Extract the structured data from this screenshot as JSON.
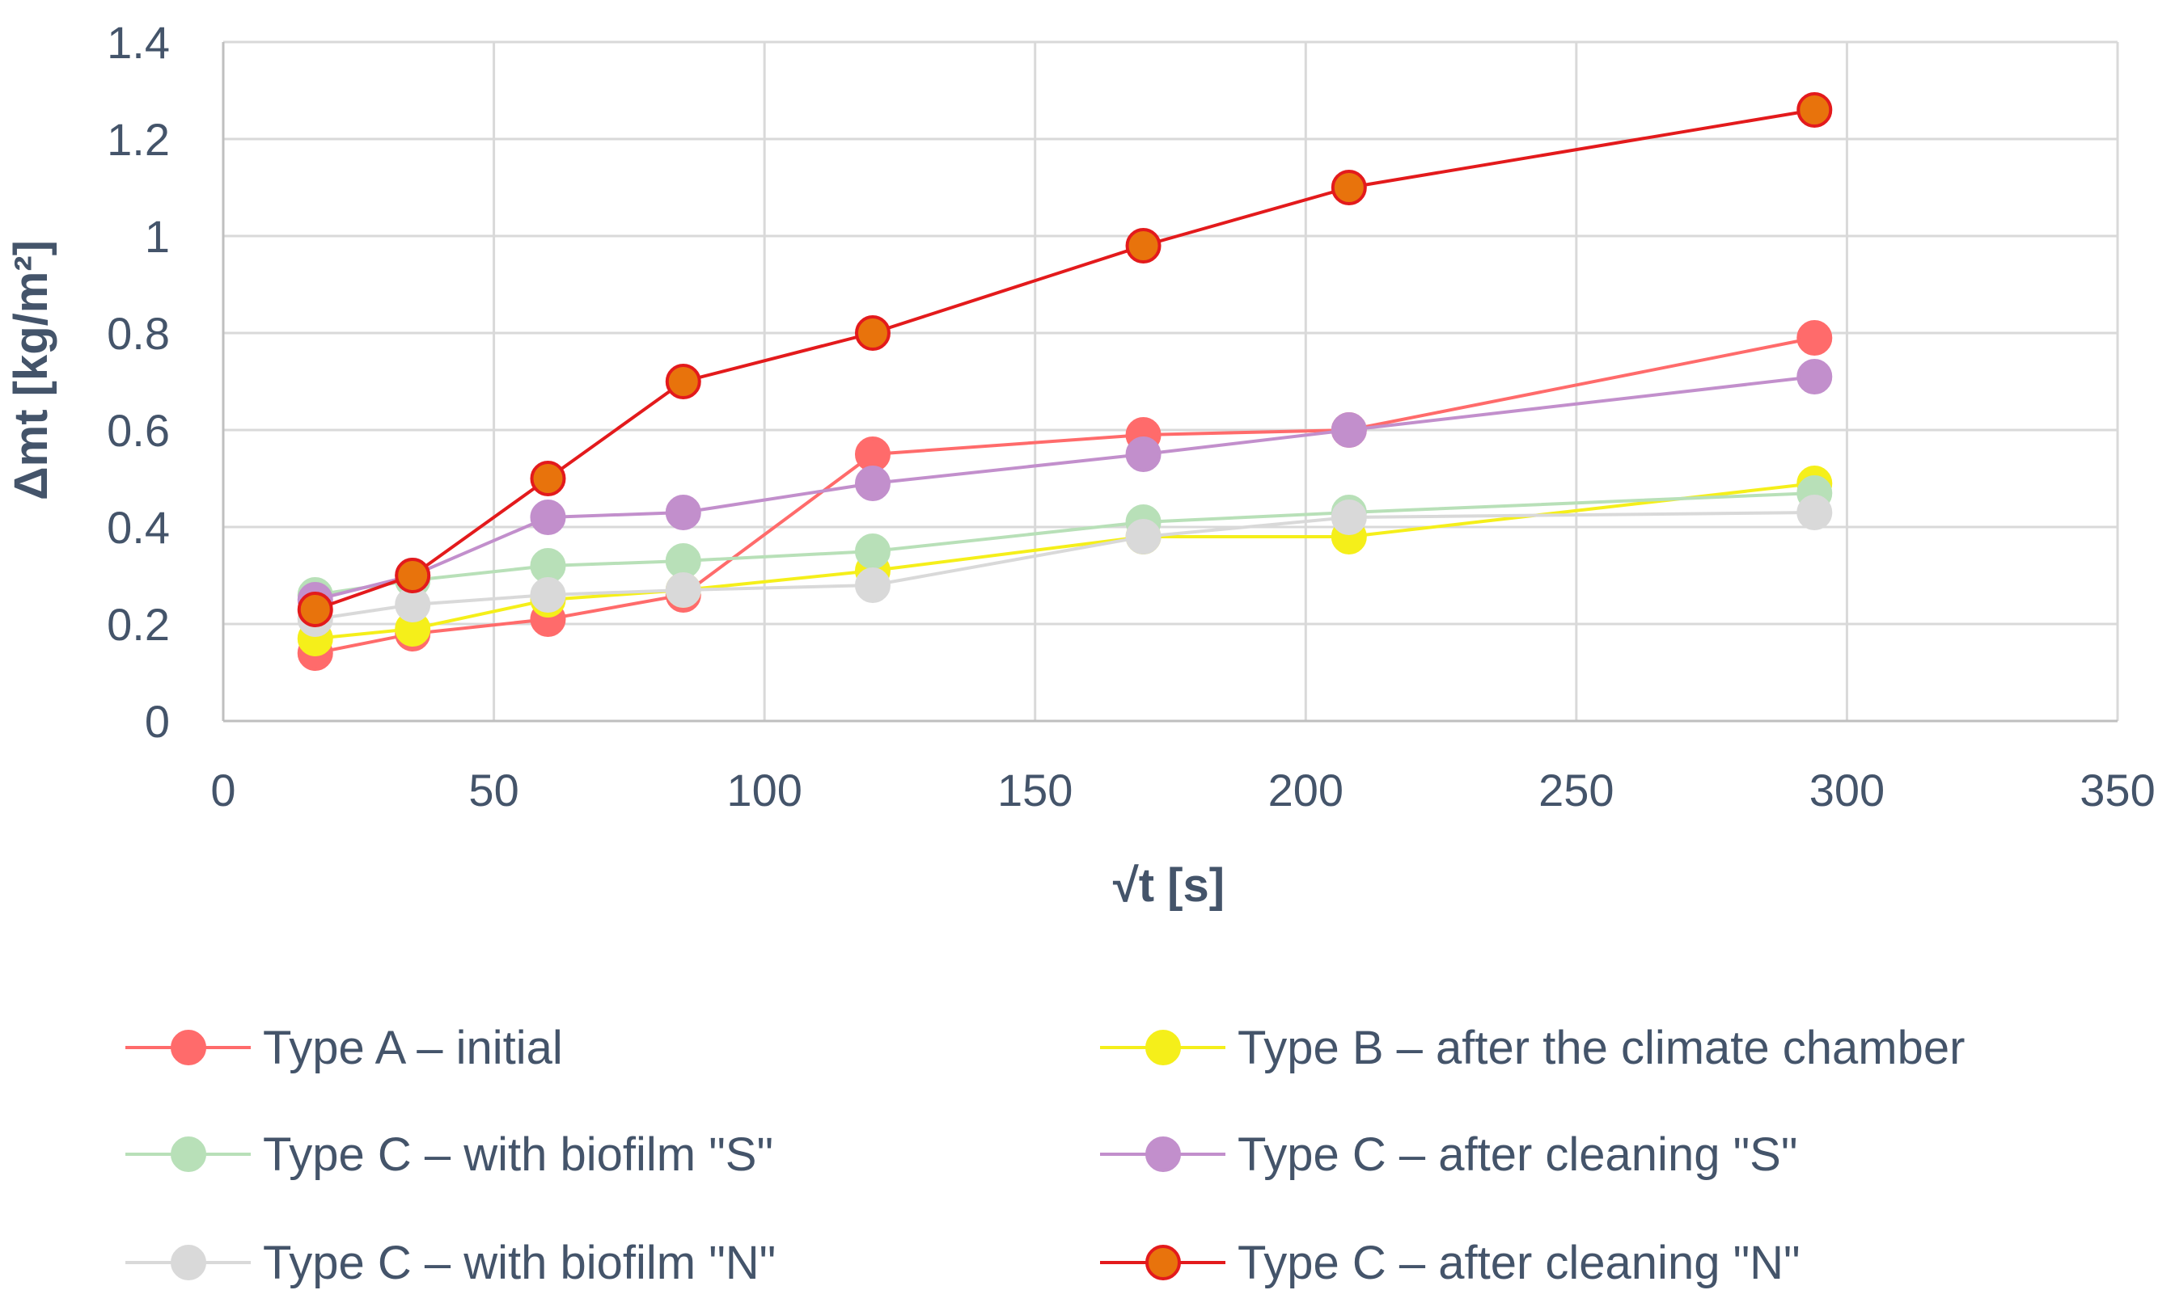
{
  "chart_data": {
    "type": "line",
    "title": "",
    "xlabel": "√t [s]",
    "ylabel": "Δmt [kg/m²]",
    "xlim": [
      0,
      350
    ],
    "ylim": [
      0,
      1.4
    ],
    "x_ticks": [
      "0",
      "50",
      "100",
      "150",
      "200",
      "250",
      "300",
      "350"
    ],
    "y_ticks": [
      "0",
      "0.2",
      "0.4",
      "0.6",
      "0.8",
      "1",
      "1.2",
      "1.4"
    ],
    "grid": true,
    "legend_position": "bottom",
    "x": [
      17,
      35,
      60,
      85,
      120,
      170,
      208,
      294
    ],
    "series": [
      {
        "name": "Type A – initial",
        "color": "#ff6b6b",
        "marker_edge": "#ff6b6b",
        "values": [
          0.14,
          0.18,
          0.21,
          0.26,
          0.55,
          0.59,
          0.6,
          0.79
        ]
      },
      {
        "name": "Type B – after the climate chamber",
        "color": "#f5ef1a",
        "marker_edge": "#f5ef1a",
        "values": [
          0.17,
          0.19,
          0.25,
          0.27,
          0.31,
          0.38,
          0.38,
          0.49
        ]
      },
      {
        "name": "Type C – with biofilm \"S\"",
        "color": "#b8e0b8",
        "marker_edge": "#b8e0b8",
        "values": [
          0.26,
          0.29,
          0.32,
          0.33,
          0.35,
          0.41,
          0.43,
          0.47
        ]
      },
      {
        "name": "Type C – after cleaning \"S\"",
        "color": "#c28fcc",
        "marker_edge": "#c28fcc",
        "values": [
          0.25,
          0.3,
          0.42,
          0.43,
          0.49,
          0.55,
          0.6,
          0.71
        ]
      },
      {
        "name": "Type C – with biofilm \"N\"",
        "color": "#d9d9d9",
        "marker_edge": "#d9d9d9",
        "values": [
          0.21,
          0.24,
          0.26,
          0.27,
          0.28,
          0.38,
          0.42,
          0.43
        ]
      },
      {
        "name": "Type C – after cleaning \"N\"",
        "color": "#e8730c",
        "marker_edge": "#e31a1c",
        "line_color": "#e31a1c",
        "values": [
          0.23,
          0.3,
          0.5,
          0.7,
          0.8,
          0.98,
          1.1,
          1.26
        ]
      }
    ]
  }
}
